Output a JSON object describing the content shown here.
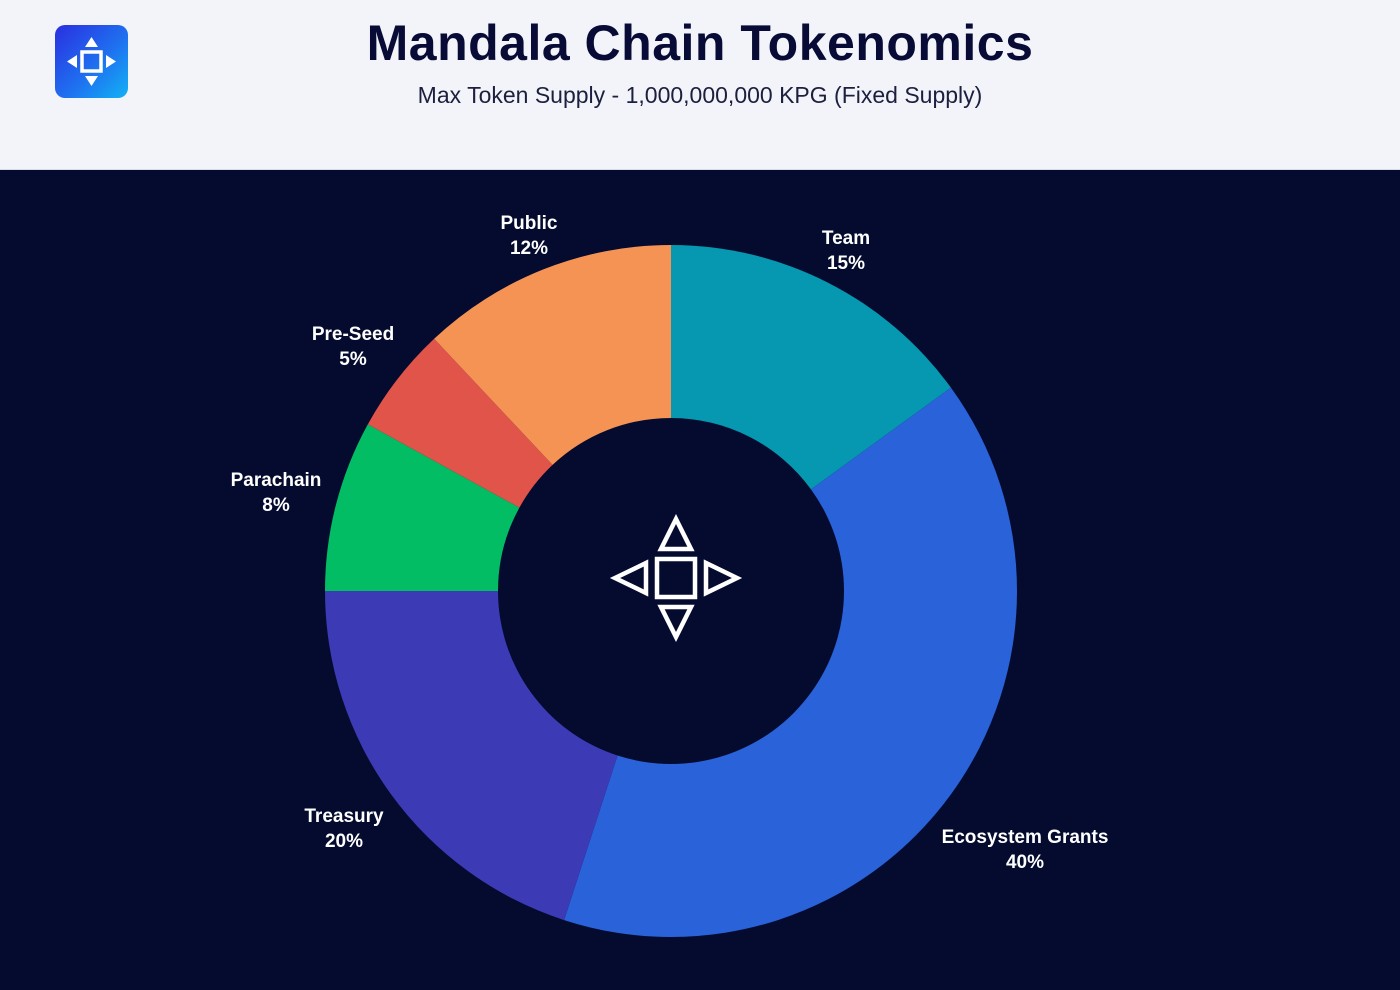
{
  "header": {
    "title": "Mandala Chain Tokenomics",
    "subtitle": "Max Token Supply - 1,000,000,000 KPG (Fixed Supply)",
    "logo_icon": "mandala-logo-icon"
  },
  "center_icon": "mandala-logo-icon",
  "colors": {
    "header_bg": "#f3f4fa",
    "chart_bg": "#050b2e",
    "title": "#070b36"
  },
  "chart_data": {
    "type": "pie",
    "title": "Mandala Chain Tokenomics",
    "subtitle": "Max Token Supply - 1,000,000,000 KPG (Fixed Supply)",
    "donut": true,
    "start": "top, clockwise",
    "slices": [
      {
        "label": "Team",
        "value": 15,
        "display": "15%",
        "color": "#0598b0"
      },
      {
        "label": "Ecosystem Grants",
        "value": 40,
        "display": "40%",
        "color": "#2962d9"
      },
      {
        "label": "Treasury",
        "value": 20,
        "display": "20%",
        "color": "#3c3ab5"
      },
      {
        "label": "Parachain",
        "value": 8,
        "display": "8%",
        "color": "#03bd64"
      },
      {
        "label": "Pre-Seed",
        "value": 5,
        "display": "5%",
        "color": "#e05449"
      },
      {
        "label": "Public",
        "value": 12,
        "display": "12%",
        "color": "#f59355"
      }
    ]
  }
}
